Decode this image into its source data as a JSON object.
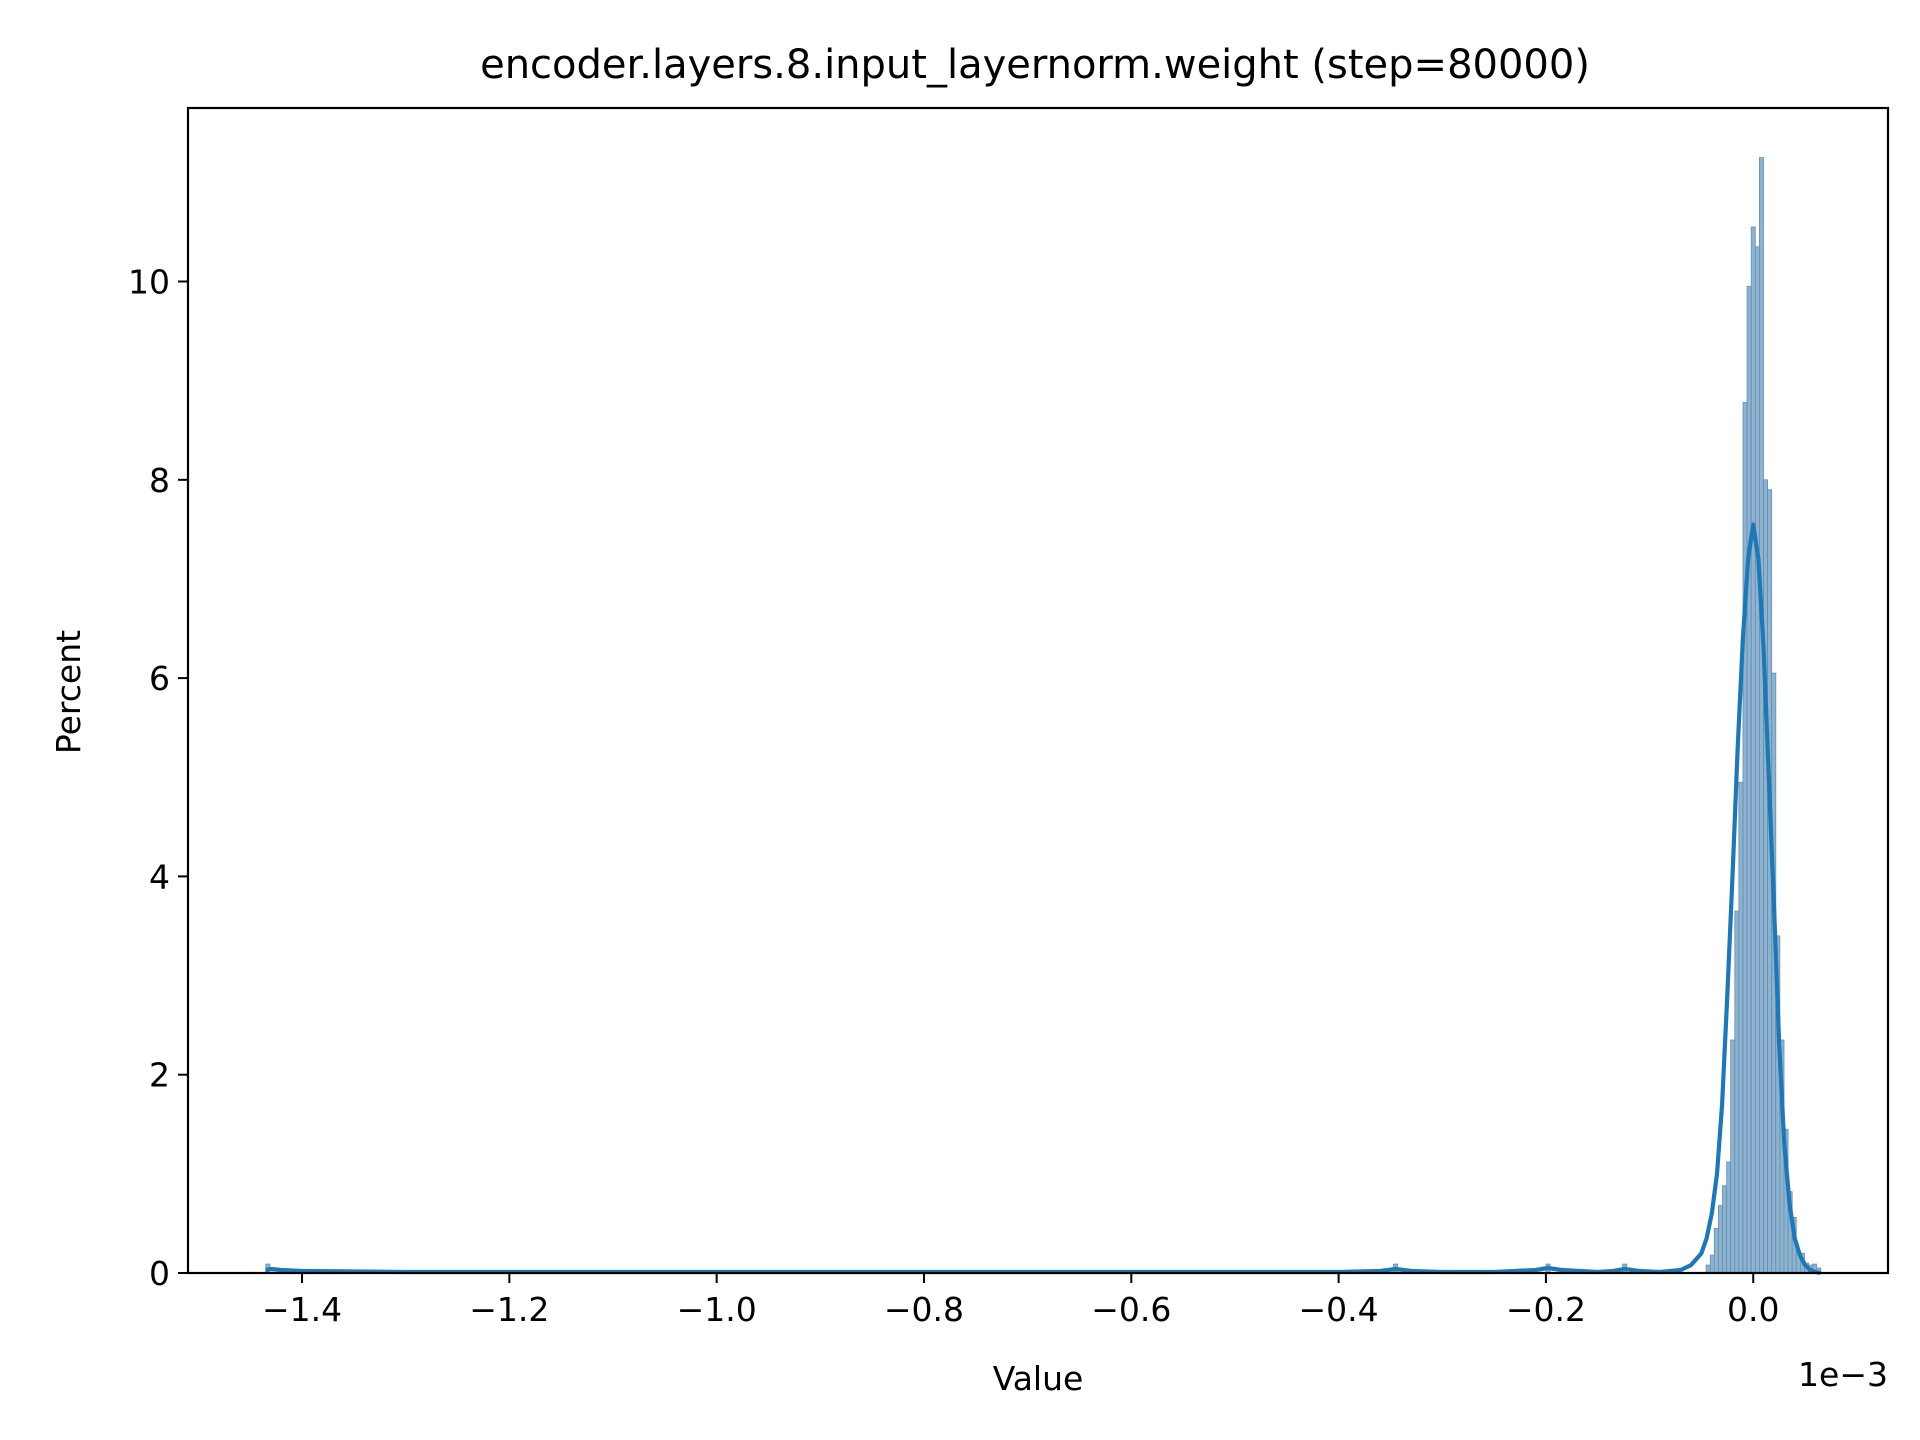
{
  "chart_data": {
    "type": "bar",
    "title": "encoder.layers.8.input_layernorm.weight (step=80000)",
    "xlabel": "Value",
    "ylabel": "Percent",
    "x_offset_label": "1e−3",
    "xlim": [
      -1.51,
      0.13
    ],
    "ylim": [
      0,
      11.75
    ],
    "x_ticks": [
      -1.4,
      -1.2,
      -1.0,
      -0.8,
      -0.6,
      -0.4,
      -0.2,
      0.0
    ],
    "x_tick_labels": [
      "−1.4",
      "−1.2",
      "−1.0",
      "−0.8",
      "−0.6",
      "−0.4",
      "−0.2",
      "0.0"
    ],
    "y_ticks": [
      0,
      2,
      4,
      6,
      8,
      10
    ],
    "y_tick_labels": [
      "0",
      "2",
      "4",
      "6",
      "8",
      "10"
    ],
    "grid": false,
    "colors": {
      "bar_fill": "#8fb3cf",
      "bar_edge": "#5f8fb5",
      "kde_line": "#1f77b4"
    },
    "histogram": {
      "bin_width": 0.00395,
      "bins": [
        {
          "x": -1.433,
          "percent": 0.09
        },
        {
          "x": -0.345,
          "percent": 0.09
        },
        {
          "x": -0.198,
          "percent": 0.09
        },
        {
          "x": -0.124,
          "percent": 0.09
        },
        {
          "x": -0.0435,
          "percent": 0.08
        },
        {
          "x": -0.0395,
          "percent": 0.18
        },
        {
          "x": -0.0356,
          "percent": 0.45
        },
        {
          "x": -0.0316,
          "percent": 0.68
        },
        {
          "x": -0.0277,
          "percent": 0.88
        },
        {
          "x": -0.0237,
          "percent": 1.12
        },
        {
          "x": -0.0198,
          "percent": 2.35
        },
        {
          "x": -0.0158,
          "percent": 3.65
        },
        {
          "x": -0.0119,
          "percent": 4.95
        },
        {
          "x": -0.0079,
          "percent": 8.78
        },
        {
          "x": -0.004,
          "percent": 9.95
        },
        {
          "x": 0.0,
          "percent": 10.55
        },
        {
          "x": 0.004,
          "percent": 10.35
        },
        {
          "x": 0.0079,
          "percent": 11.25
        },
        {
          "x": 0.0119,
          "percent": 8.0
        },
        {
          "x": 0.0158,
          "percent": 7.9
        },
        {
          "x": 0.0198,
          "percent": 6.05
        },
        {
          "x": 0.0237,
          "percent": 3.4
        },
        {
          "x": 0.0277,
          "percent": 2.35
        },
        {
          "x": 0.0316,
          "percent": 1.45
        },
        {
          "x": 0.0356,
          "percent": 0.82
        },
        {
          "x": 0.0395,
          "percent": 0.56
        },
        {
          "x": 0.0435,
          "percent": 0.2
        },
        {
          "x": 0.0474,
          "percent": 0.2
        },
        {
          "x": 0.0514,
          "percent": 0.1
        },
        {
          "x": 0.0553,
          "percent": 0.08
        },
        {
          "x": 0.0593,
          "percent": 0.09
        },
        {
          "x": 0.0632,
          "percent": 0.05
        }
      ]
    },
    "kde": {
      "x": [
        -1.435,
        -1.43,
        -1.42,
        -1.4,
        -1.3,
        -1.0,
        -0.6,
        -0.4,
        -0.36,
        -0.345,
        -0.33,
        -0.3,
        -0.25,
        -0.21,
        -0.198,
        -0.185,
        -0.15,
        -0.135,
        -0.124,
        -0.11,
        -0.09,
        -0.07,
        -0.06,
        -0.05,
        -0.045,
        -0.04,
        -0.035,
        -0.03,
        -0.025,
        -0.02,
        -0.015,
        -0.01,
        -0.005,
        0.0,
        0.005,
        0.01,
        0.015,
        0.02,
        0.025,
        0.03,
        0.035,
        0.04,
        0.045,
        0.05,
        0.055,
        0.06,
        0.065
      ],
      "y": [
        0.03,
        0.04,
        0.03,
        0.02,
        0.01,
        0.01,
        0.01,
        0.01,
        0.02,
        0.04,
        0.02,
        0.01,
        0.01,
        0.03,
        0.05,
        0.03,
        0.01,
        0.02,
        0.04,
        0.02,
        0.01,
        0.03,
        0.08,
        0.2,
        0.35,
        0.6,
        1.0,
        1.7,
        2.8,
        4.0,
        5.3,
        6.4,
        7.2,
        7.55,
        7.2,
        6.3,
        5.0,
        3.7,
        2.3,
        1.3,
        0.7,
        0.35,
        0.18,
        0.08,
        0.03,
        0.01,
        0.0
      ]
    }
  }
}
